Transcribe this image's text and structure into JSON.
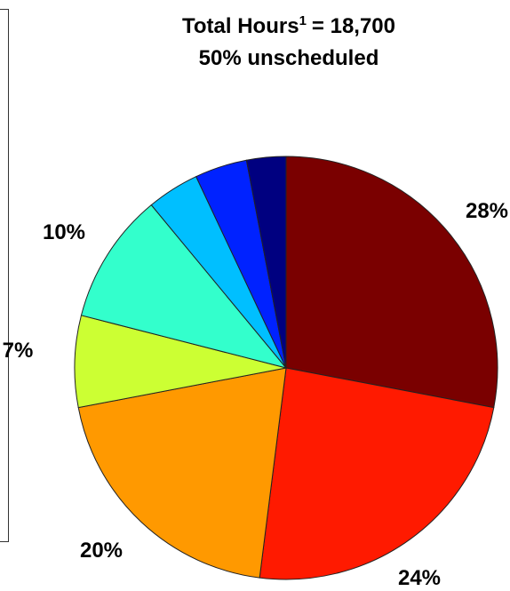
{
  "chart_data": {
    "type": "pie",
    "title": {
      "line1_text": "Total Hours",
      "line1_superscript": "1",
      "line1_value": "= 18,700",
      "line2": "50% unscheduled"
    },
    "slices": [
      {
        "value": 28,
        "label": "28%",
        "color": "#7a0000"
      },
      {
        "value": 24,
        "label": "24%",
        "color": "#ff1a00"
      },
      {
        "value": 20,
        "label": "20%",
        "color": "#ff9900"
      },
      {
        "value": 7,
        "label": "7%",
        "color": "#ccff33"
      },
      {
        "value": 10,
        "label": "10%",
        "color": "#33ffcc"
      },
      {
        "value": 4,
        "label": "",
        "color": "#00bfff"
      },
      {
        "value": 4,
        "label": "",
        "color": "#0022ff"
      },
      {
        "value": 3,
        "label": "",
        "color": "#000080"
      }
    ],
    "start": "12 o'clock",
    "direction": "clockwise"
  }
}
